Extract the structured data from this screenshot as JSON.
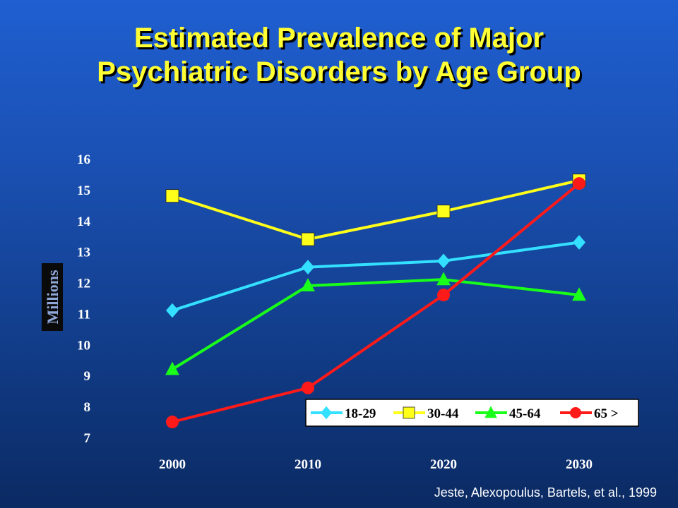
{
  "slide": {
    "title_line1": "Estimated Prevalence of Major",
    "title_line2": "Psychiatric Disorders by Age Group",
    "source": "Jeste, Alexopoulus, Bartels, et al., 1999",
    "title_color": "#ffff33"
  },
  "chart_data": {
    "type": "line",
    "title": "Estimated Prevalence of Major Psychiatric Disorders by Age Group",
    "xlabel": "",
    "ylabel": "Millions",
    "categories": [
      "2000",
      "2010",
      "2020",
      "2030"
    ],
    "ylim": [
      7,
      16
    ],
    "yticks": [
      "16",
      "15",
      "14",
      "13",
      "12",
      "11",
      "10",
      "9",
      "8",
      "7"
    ],
    "grid": false,
    "legend_position": "bottom-right",
    "series": [
      {
        "name": "18-29",
        "values": [
          11.1,
          12.5,
          12.7,
          13.3
        ],
        "color": "#33e0ff",
        "marker": "diamond"
      },
      {
        "name": "30-44",
        "values": [
          14.8,
          13.4,
          14.3,
          15.3
        ],
        "color": "#ffff1a",
        "marker": "square"
      },
      {
        "name": "45-64",
        "values": [
          9.2,
          11.9,
          12.1,
          11.6
        ],
        "color": "#1aff1a",
        "marker": "triangle"
      },
      {
        "name": "65 >",
        "values": [
          7.5,
          8.6,
          11.6,
          15.2
        ],
        "color": "#ff1a1a",
        "marker": "circle"
      }
    ]
  }
}
